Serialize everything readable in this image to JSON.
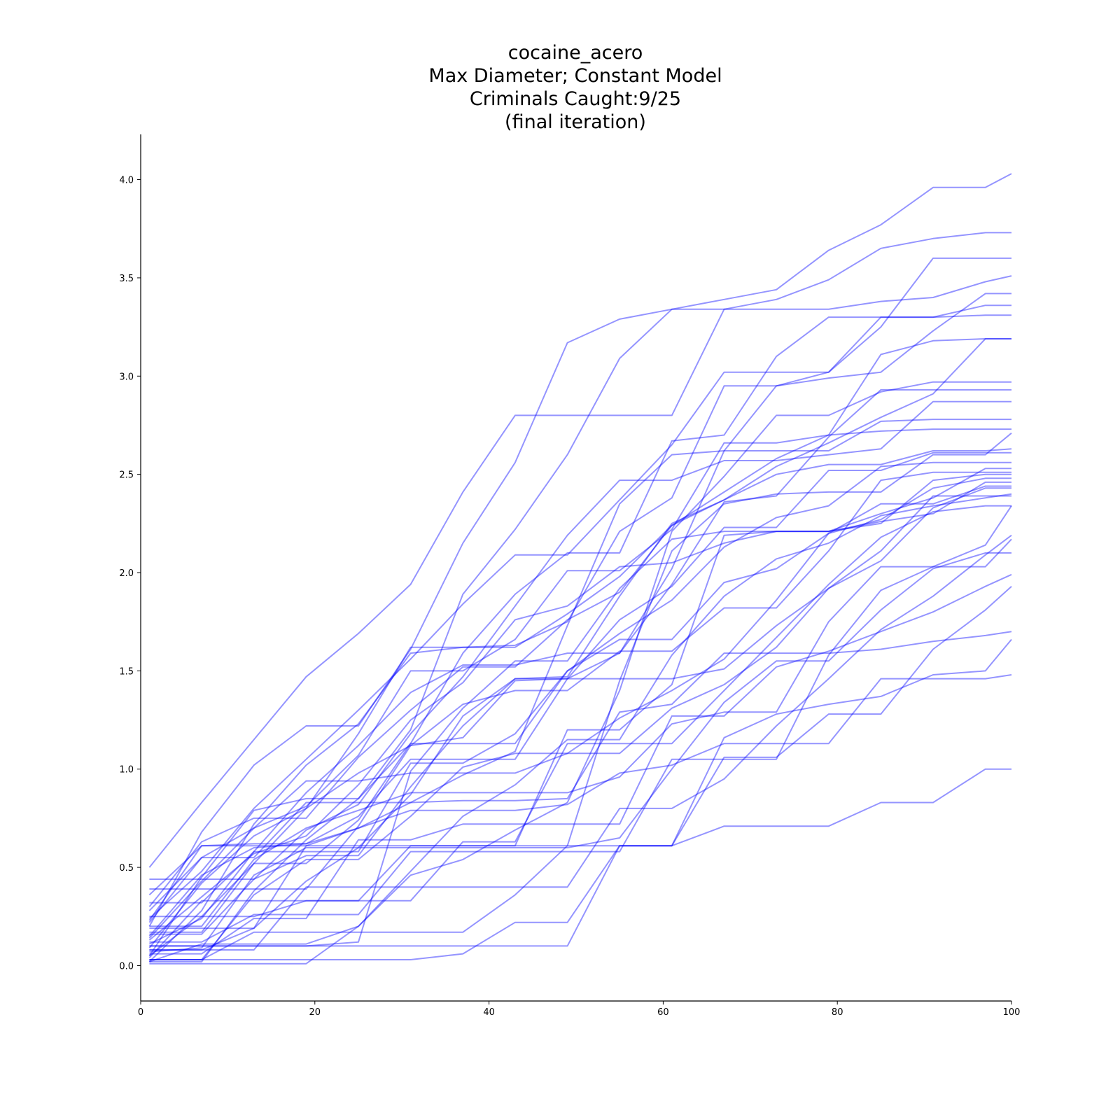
{
  "chart_data": {
    "type": "line",
    "title_lines": [
      "cocaine_acero",
      "Max Diameter; Constant Model",
      "Criminals Caught:9/25",
      "(final iteration)"
    ],
    "xlabel": "",
    "ylabel": "",
    "xlim": [
      0,
      100
    ],
    "ylim": [
      -0.18,
      4.23
    ],
    "x_ticks": [
      0,
      20,
      40,
      60,
      80,
      100
    ],
    "x_tick_labels": [
      "0",
      "20",
      "40",
      "60",
      "80",
      "100"
    ],
    "y_ticks": [
      0.0,
      0.5,
      1.0,
      1.5,
      2.0,
      2.5,
      3.0,
      3.5,
      4.0
    ],
    "y_tick_labels": [
      "0.0",
      "0.5",
      "1.0",
      "1.5",
      "2.0",
      "2.5",
      "3.0",
      "3.5",
      "4.0"
    ],
    "grid": false,
    "line_color": "#0000ff",
    "line_opacity": 0.42,
    "x": [
      1,
      7,
      13,
      19,
      25,
      31,
      37,
      43,
      49,
      55,
      61,
      67,
      73,
      79,
      85,
      91,
      97,
      100
    ],
    "series": [
      {
        "values": [
          0.5,
          0.83,
          1.15,
          1.47,
          1.69,
          1.94,
          2.41,
          2.8,
          2.8,
          2.8,
          2.8,
          3.34,
          3.34,
          3.34,
          3.38,
          3.4,
          3.48,
          3.51
        ]
      },
      {
        "values": [
          0.2,
          0.68,
          1.02,
          1.22,
          1.22,
          1.61,
          2.15,
          2.56,
          3.17,
          3.29,
          3.34,
          3.39,
          3.44,
          3.64,
          3.77,
          3.96,
          3.96,
          4.03
        ]
      },
      {
        "values": [
          0.05,
          0.45,
          0.79,
          0.85,
          0.85,
          1.2,
          1.89,
          2.22,
          2.6,
          3.09,
          3.34,
          3.34,
          3.39,
          3.49,
          3.65,
          3.7,
          3.73,
          3.73
        ]
      },
      {
        "values": [
          0.02,
          0.28,
          0.72,
          1.02,
          1.23,
          1.59,
          1.62,
          1.63,
          1.75,
          2.21,
          2.38,
          2.95,
          2.95,
          3.02,
          3.25,
          3.6,
          3.6,
          3.6
        ]
      },
      {
        "values": [
          0.02,
          0.02,
          0.38,
          0.64,
          0.85,
          1.13,
          1.59,
          1.89,
          2.1,
          2.1,
          2.67,
          2.7,
          3.1,
          3.3,
          3.3,
          3.3,
          3.31,
          3.31
        ]
      },
      {
        "values": [
          0.24,
          0.48,
          0.8,
          1.05,
          1.3,
          1.56,
          1.84,
          2.09,
          2.09,
          2.37,
          2.65,
          3.02,
          3.02,
          3.02,
          3.3,
          3.3,
          3.36,
          3.36
        ]
      },
      {
        "values": [
          0.36,
          0.61,
          0.62,
          0.62,
          0.7,
          0.83,
          0.97,
          1.09,
          1.73,
          2.35,
          2.6,
          2.62,
          2.95,
          2.99,
          3.02,
          3.23,
          3.42,
          3.42
        ]
      },
      {
        "values": [
          0.14,
          0.43,
          0.7,
          0.81,
          1.07,
          1.5,
          1.5,
          1.66,
          2.01,
          2.01,
          2.22,
          2.66,
          2.66,
          2.7,
          3.11,
          3.18,
          3.19,
          3.19
        ]
      },
      {
        "values": [
          0.02,
          0.11,
          0.11,
          0.11,
          0.2,
          0.46,
          0.54,
          0.69,
          0.83,
          1.4,
          2.21,
          2.49,
          2.8,
          2.8,
          2.92,
          2.97,
          2.97,
          2.97
        ]
      },
      {
        "values": [
          0.11,
          0.24,
          0.58,
          0.88,
          1.12,
          1.39,
          1.53,
          1.53,
          1.59,
          1.59,
          1.94,
          2.36,
          2.39,
          2.69,
          2.93,
          2.93,
          2.93,
          2.93
        ]
      },
      {
        "values": [
          0.09,
          0.42,
          0.66,
          0.8,
          0.98,
          1.12,
          1.16,
          1.45,
          1.46,
          1.59,
          2.02,
          2.62,
          2.62,
          2.62,
          2.77,
          2.78,
          2.78,
          2.78
        ]
      },
      {
        "values": [
          0.04,
          0.33,
          0.33,
          0.33,
          0.33,
          0.61,
          0.61,
          0.61,
          0.61,
          1.45,
          2.11,
          2.35,
          2.4,
          2.41,
          2.41,
          2.6,
          2.6,
          2.71
        ]
      },
      {
        "values": [
          0.07,
          0.09,
          0.46,
          0.6,
          0.6,
          0.87,
          1.27,
          1.46,
          1.46,
          1.76,
          1.93,
          2.23,
          2.23,
          2.52,
          2.52,
          2.61,
          2.61,
          2.61
        ]
      },
      {
        "values": [
          0.17,
          0.17,
          0.52,
          0.52,
          0.74,
          1.13,
          1.13,
          1.13,
          1.5,
          1.69,
          1.86,
          2.13,
          2.28,
          2.34,
          2.54,
          2.56,
          2.56,
          2.56
        ]
      },
      {
        "values": [
          0.23,
          0.61,
          0.61,
          0.61,
          0.61,
          0.61,
          0.61,
          0.61,
          1.2,
          1.2,
          1.43,
          2.19,
          2.21,
          2.21,
          2.3,
          2.38,
          2.53,
          2.53
        ]
      },
      {
        "values": [
          0.39,
          0.39,
          0.39,
          0.39,
          0.71,
          1.12,
          1.33,
          1.4,
          1.4,
          1.6,
          1.6,
          1.82,
          1.82,
          2.11,
          2.47,
          2.51,
          2.51,
          2.51
        ]
      },
      {
        "values": [
          0.03,
          0.03,
          0.36,
          0.54,
          0.54,
          0.76,
          1.01,
          1.08,
          1.08,
          1.26,
          1.4,
          1.56,
          1.86,
          2.2,
          2.27,
          2.43,
          2.48,
          2.48
        ]
      },
      {
        "values": [
          0.1,
          0.1,
          0.1,
          0.1,
          0.12,
          0.99,
          1.31,
          1.55,
          1.55,
          1.92,
          2.17,
          2.21,
          2.21,
          2.21,
          2.26,
          2.3,
          2.46,
          2.46
        ]
      },
      {
        "values": [
          0.22,
          0.55,
          0.7,
          0.94,
          0.94,
          0.98,
          0.98,
          0.98,
          1.08,
          1.08,
          1.31,
          1.43,
          1.62,
          1.92,
          2.06,
          2.33,
          2.43,
          2.43
        ]
      },
      {
        "values": [
          0.15,
          0.46,
          0.6,
          0.62,
          0.76,
          1.05,
          1.05,
          1.05,
          1.46,
          1.46,
          1.46,
          1.51,
          1.73,
          1.92,
          2.11,
          2.39,
          2.39,
          2.39
        ]
      },
      {
        "values": [
          0.05,
          0.25,
          0.25,
          0.33,
          0.33,
          0.33,
          0.63,
          0.63,
          1.13,
          1.13,
          1.13,
          1.4,
          1.67,
          1.94,
          2.18,
          2.31,
          2.34,
          2.34
        ]
      },
      {
        "values": [
          0.12,
          0.12,
          0.26,
          0.26,
          0.26,
          0.58,
          0.58,
          0.58,
          0.58,
          0.58,
          1.05,
          1.05,
          1.05,
          1.58,
          1.91,
          2.03,
          2.14,
          2.34
        ]
      },
      {
        "values": [
          0.2,
          0.2,
          0.54,
          0.7,
          0.79,
          0.88,
          0.88,
          0.88,
          0.88,
          0.96,
          1.23,
          1.29,
          1.29,
          1.75,
          2.03,
          2.03,
          2.03,
          2.17
        ]
      },
      {
        "values": [
          0.08,
          0.08,
          0.19,
          0.43,
          0.6,
          0.6,
          0.6,
          0.6,
          0.6,
          0.65,
          1.0,
          1.34,
          1.55,
          1.55,
          1.81,
          2.02,
          2.1,
          2.1
        ]
      },
      {
        "values": [
          0.06,
          0.06,
          0.24,
          0.24,
          0.64,
          0.64,
          0.72,
          0.72,
          0.72,
          0.72,
          1.27,
          1.27,
          1.52,
          1.6,
          1.7,
          1.8,
          1.93,
          1.99
        ]
      },
      {
        "values": [
          0.03,
          0.03,
          0.17,
          0.17,
          0.17,
          0.17,
          0.17,
          0.36,
          0.61,
          0.61,
          0.61,
          1.06,
          1.06,
          1.28,
          1.28,
          1.61,
          1.81,
          1.93
        ]
      },
      {
        "values": [
          0.1,
          0.1,
          0.1,
          0.1,
          0.1,
          0.1,
          0.1,
          0.1,
          0.1,
          0.61,
          0.61,
          1.16,
          1.28,
          1.33,
          1.37,
          1.48,
          1.5,
          1.66
        ]
      },
      {
        "values": [
          0.03,
          0.03,
          0.03,
          0.03,
          0.03,
          0.03,
          0.06,
          0.22,
          0.22,
          0.61,
          0.61,
          0.71,
          0.71,
          0.71,
          0.83,
          0.83,
          1.0,
          1.0
        ]
      },
      {
        "values": [
          0.19,
          0.19,
          0.19,
          0.61,
          0.7,
          0.79,
          0.79,
          0.79,
          0.82,
          0.98,
          1.02,
          1.13,
          1.13,
          1.13,
          1.46,
          1.46,
          1.46,
          1.48
        ]
      },
      {
        "values": [
          0.28,
          0.55,
          0.55,
          0.83,
          0.83,
          0.83,
          0.84,
          0.84,
          0.85,
          1.29,
          1.33,
          1.59,
          1.59,
          1.59,
          1.61,
          1.65,
          1.68,
          1.7
        ]
      },
      {
        "values": [
          0.13,
          0.35,
          0.57,
          0.66,
          0.92,
          1.25,
          1.44,
          1.76,
          1.83,
          2.03,
          2.05,
          2.15,
          2.21,
          2.21,
          2.25,
          2.47,
          2.5,
          2.5
        ]
      },
      {
        "values": [
          0.3,
          0.63,
          0.75,
          0.75,
          1.06,
          1.3,
          1.52,
          1.52,
          1.76,
          1.9,
          2.24,
          2.41,
          2.58,
          2.7,
          2.72,
          2.73,
          2.73,
          2.73
        ]
      },
      {
        "values": [
          0.44,
          0.44,
          0.44,
          0.69,
          0.82,
          1.18,
          1.47,
          1.83,
          2.19,
          2.47,
          2.47,
          2.57,
          2.57,
          2.6,
          2.63,
          2.87,
          2.87,
          2.87
        ]
      },
      {
        "values": [
          0.16,
          0.16,
          0.44,
          0.56,
          0.56,
          0.91,
          1.22,
          1.46,
          1.47,
          1.88,
          2.25,
          2.37,
          2.5,
          2.55,
          2.55,
          2.62,
          2.62,
          2.63
        ]
      },
      {
        "values": [
          0.01,
          0.01,
          0.01,
          0.01,
          0.2,
          0.48,
          0.76,
          0.92,
          1.15,
          1.15,
          1.58,
          1.88,
          2.07,
          2.15,
          2.29,
          2.34,
          2.38,
          2.4
        ]
      },
      {
        "values": [
          0.08,
          0.08,
          0.08,
          0.4,
          0.4,
          0.4,
          0.4,
          0.4,
          0.4,
          0.8,
          0.8,
          0.95,
          1.22,
          1.46,
          1.71,
          1.88,
          2.09,
          2.19
        ]
      },
      {
        "values": [
          0.25,
          0.25,
          0.52,
          0.8,
          1.18,
          1.62,
          1.62,
          1.62,
          1.79,
          1.98,
          2.24,
          2.37,
          2.54,
          2.66,
          2.79,
          2.91,
          3.19,
          3.19
        ]
      },
      {
        "values": [
          0.32,
          0.32,
          0.58,
          0.58,
          0.58,
          1.03,
          1.03,
          1.18,
          1.5,
          1.66,
          1.66,
          1.95,
          2.02,
          2.2,
          2.35,
          2.35,
          2.44,
          2.44
        ]
      }
    ]
  }
}
